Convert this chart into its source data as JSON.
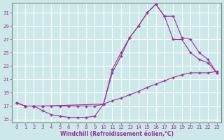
{
  "xlabel": "Windchill (Refroidissement éolien,°C)",
  "bg_color": "#cce8e8",
  "line_color": "#993399",
  "grid_color": "#ffffff",
  "xlim": [
    -0.5,
    23.5
  ],
  "ylim": [
    14.5,
    32.5
  ],
  "yticks": [
    15,
    17,
    19,
    21,
    23,
    25,
    27,
    29,
    31
  ],
  "xticks": [
    0,
    1,
    2,
    3,
    4,
    5,
    6,
    7,
    8,
    9,
    10,
    11,
    12,
    13,
    14,
    15,
    16,
    17,
    18,
    19,
    20,
    21,
    22,
    23
  ],
  "line1_x": [
    0,
    1,
    2,
    3,
    4,
    5,
    6,
    7,
    8,
    9,
    10,
    11,
    12,
    13,
    14,
    15,
    16,
    17,
    18,
    19,
    20,
    21,
    22,
    23
  ],
  "line1_y": [
    17.5,
    17.0,
    17.0,
    16.3,
    15.7,
    15.5,
    15.3,
    15.3,
    15.3,
    15.5,
    17.3,
    22.0,
    24.5,
    27.3,
    29.0,
    31.0,
    32.3,
    30.5,
    27.0,
    27.0,
    25.0,
    24.0,
    23.5,
    22.0
  ],
  "line2_x": [
    0,
    1,
    2,
    3,
    4,
    5,
    6,
    7,
    8,
    9,
    10,
    11,
    12,
    13,
    14,
    15,
    16,
    17,
    18,
    19,
    20,
    21,
    22,
    23
  ],
  "line2_y": [
    17.5,
    17.0,
    17.0,
    17.0,
    17.0,
    17.0,
    17.0,
    17.0,
    17.0,
    17.0,
    17.3,
    17.8,
    18.2,
    18.7,
    19.2,
    19.8,
    20.3,
    20.8,
    21.3,
    21.7,
    22.0,
    22.0,
    22.0,
    22.2
  ],
  "line3_x": [
    0,
    1,
    2,
    3,
    10,
    11,
    12,
    13,
    14,
    15,
    16,
    17,
    18,
    19,
    20,
    21,
    22,
    23
  ],
  "line3_y": [
    17.5,
    17.0,
    17.0,
    17.0,
    17.3,
    22.5,
    25.0,
    27.3,
    29.0,
    31.0,
    32.3,
    30.5,
    30.5,
    27.3,
    27.0,
    25.0,
    24.0,
    22.0
  ]
}
